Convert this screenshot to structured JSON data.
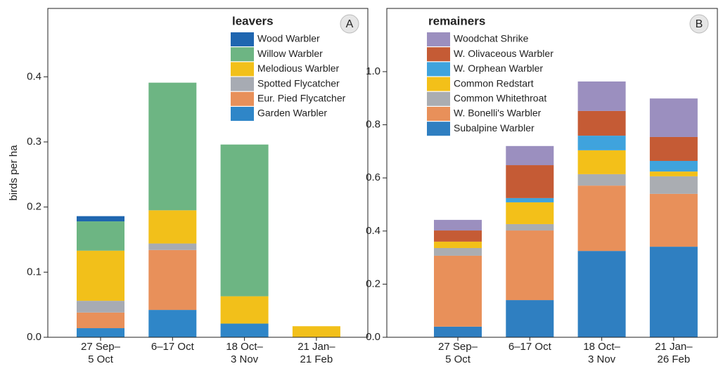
{
  "chart_data": [
    {
      "type": "stacked_bar",
      "panel_label": "A",
      "ylabel": "birds per ha",
      "legend_title": "leavers",
      "legend": "upper right",
      "categories": [
        "27 Sep–\n5 Oct",
        "6–17 Oct",
        "18 Oct–\n3 Nov",
        "21 Jan–\n21 Feb"
      ],
      "ylim": [
        0,
        0.505
      ],
      "yticks": [
        {
          "value": 0,
          "label": "0.0"
        },
        0.1,
        0.2,
        0.3,
        0.4
      ],
      "series": [
        {
          "name": "Garden Warbler",
          "color": "#2f86c8",
          "values": [
            0.014,
            0.042,
            0.021,
            0
          ]
        },
        {
          "name": "Eur. Pied Flycatcher",
          "color": "#e8905a",
          "values": [
            0.024,
            0.092,
            0,
            0
          ]
        },
        {
          "name": "Spotted Flycatcher",
          "color": "#a7abb3",
          "values": [
            0.018,
            0.01,
            0,
            0
          ]
        },
        {
          "name": "Melodious Warbler",
          "color": "#f2c01a",
          "values": [
            0.077,
            0.051,
            0.042,
            0.017
          ]
        },
        {
          "name": "Willow Warbler",
          "color": "#6db583",
          "values": [
            0.045,
            0.196,
            0.233,
            0
          ]
        },
        {
          "name": "Wood Warbler",
          "color": "#1f66b0",
          "values": [
            0.008,
            0,
            0,
            0
          ]
        }
      ]
    },
    {
      "type": "stacked_bar",
      "panel_label": "B",
      "legend_title": "remainers",
      "legend": "upper left",
      "categories": [
        "27 Sep–\n5 Oct",
        "6–17 Oct",
        "18 Oct–\n3 Nov",
        "21 Jan–\n26 Feb"
      ],
      "ylim": [
        0,
        1.238
      ],
      "yticks": [
        {
          "value": 0,
          "label": "0.0"
        },
        0.2,
        0.4,
        0.6,
        0.8,
        {
          "value": 1,
          "label": "1.0"
        }
      ],
      "series": [
        {
          "name": "Subalpine Warbler",
          "color": "#2f7fc1",
          "values": [
            0.04,
            0.14,
            0.325,
            0.341
          ]
        },
        {
          "name": "W. Bonelli's Warbler",
          "color": "#e8905a",
          "values": [
            0.267,
            0.262,
            0.246,
            0.199
          ]
        },
        {
          "name": "Common Whitethroat",
          "color": "#aaadb2",
          "values": [
            0.029,
            0.024,
            0.043,
            0.066
          ]
        },
        {
          "name": "Common Redstart",
          "color": "#f3c019",
          "values": [
            0.024,
            0.082,
            0.09,
            0.018
          ]
        },
        {
          "name": "W. Orphean Warbler",
          "color": "#3fa3dd",
          "values": [
            0,
            0.016,
            0.055,
            0.04
          ]
        },
        {
          "name": "W. Olivaceous Warbler",
          "color": "#c55b35",
          "values": [
            0.042,
            0.124,
            0.093,
            0.09
          ]
        },
        {
          "name": "Woodchat Shrike",
          "color": "#9b8fbf",
          "values": [
            0.04,
            0.072,
            0.111,
            0.145
          ]
        }
      ]
    }
  ]
}
